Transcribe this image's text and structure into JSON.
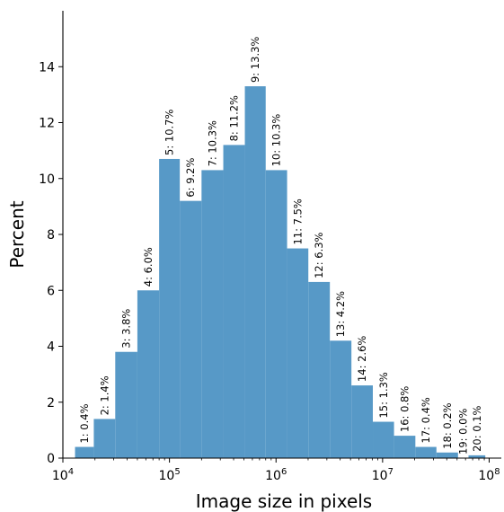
{
  "chart_data": {
    "type": "bar",
    "xlabel": "Image size in pixels",
    "ylabel": "Percent",
    "x_scale": "log",
    "xlim": [
      10000,
      130000000
    ],
    "ylim": [
      0,
      16
    ],
    "grid": false,
    "x_ticks": [
      {
        "value": 10000,
        "base": "10",
        "exp": "4"
      },
      {
        "value": 100000,
        "base": "10",
        "exp": "5"
      },
      {
        "value": 1000000,
        "base": "10",
        "exp": "6"
      },
      {
        "value": 10000000,
        "base": "10",
        "exp": "7"
      },
      {
        "value": 100000000,
        "base": "10",
        "exp": "8"
      }
    ],
    "y_ticks": [
      "0",
      "2",
      "4",
      "6",
      "8",
      "10",
      "12",
      "14"
    ],
    "bars": [
      {
        "x0": 13000,
        "x1": 19500,
        "value": 0.4,
        "label": "1: 0.4%"
      },
      {
        "x0": 19500,
        "x1": 31000,
        "value": 1.4,
        "label": "2: 1.4%"
      },
      {
        "x0": 31000,
        "x1": 50000,
        "value": 3.8,
        "label": "3: 3.8%"
      },
      {
        "x0": 50000,
        "x1": 80000,
        "value": 6.0,
        "label": "4: 6.0%"
      },
      {
        "x0": 80000,
        "x1": 125000,
        "value": 10.7,
        "label": "5: 10.7%"
      },
      {
        "x0": 125000,
        "x1": 200000,
        "value": 9.2,
        "label": "6: 9.2%"
      },
      {
        "x0": 200000,
        "x1": 320000,
        "value": 10.3,
        "label": "7: 10.3%"
      },
      {
        "x0": 320000,
        "x1": 510000,
        "value": 11.2,
        "label": "8: 11.2%"
      },
      {
        "x0": 510000,
        "x1": 800000,
        "value": 13.3,
        "label": "9: 13.3%"
      },
      {
        "x0": 800000,
        "x1": 1270000,
        "value": 10.3,
        "label": "10: 10.3%"
      },
      {
        "x0": 1270000,
        "x1": 2010000,
        "value": 7.5,
        "label": "11: 7.5%"
      },
      {
        "x0": 2010000,
        "x1": 3200000,
        "value": 6.3,
        "label": "12: 6.3%"
      },
      {
        "x0": 3200000,
        "x1": 5100000,
        "value": 4.2,
        "label": "13: 4.2%"
      },
      {
        "x0": 5100000,
        "x1": 8100000,
        "value": 2.6,
        "label": "14: 2.6%"
      },
      {
        "x0": 8100000,
        "x1": 12800000,
        "value": 1.3,
        "label": "15: 1.3%"
      },
      {
        "x0": 12800000,
        "x1": 20300000,
        "value": 0.8,
        "label": "16: 0.8%"
      },
      {
        "x0": 20300000,
        "x1": 32000000,
        "value": 0.4,
        "label": "17: 0.4%"
      },
      {
        "x0": 32000000,
        "x1": 51000000,
        "value": 0.2,
        "label": "18: 0.2%"
      },
      {
        "x0": 51000000,
        "x1": 64000000,
        "value": 0.0,
        "label": "19: 0.0%"
      },
      {
        "x0": 64000000,
        "x1": 92000000,
        "value": 0.1,
        "label": "20: 0.1%"
      }
    ],
    "colors": {
      "bar": "#5799c7",
      "axis": "#000000",
      "text": "#000000"
    }
  }
}
